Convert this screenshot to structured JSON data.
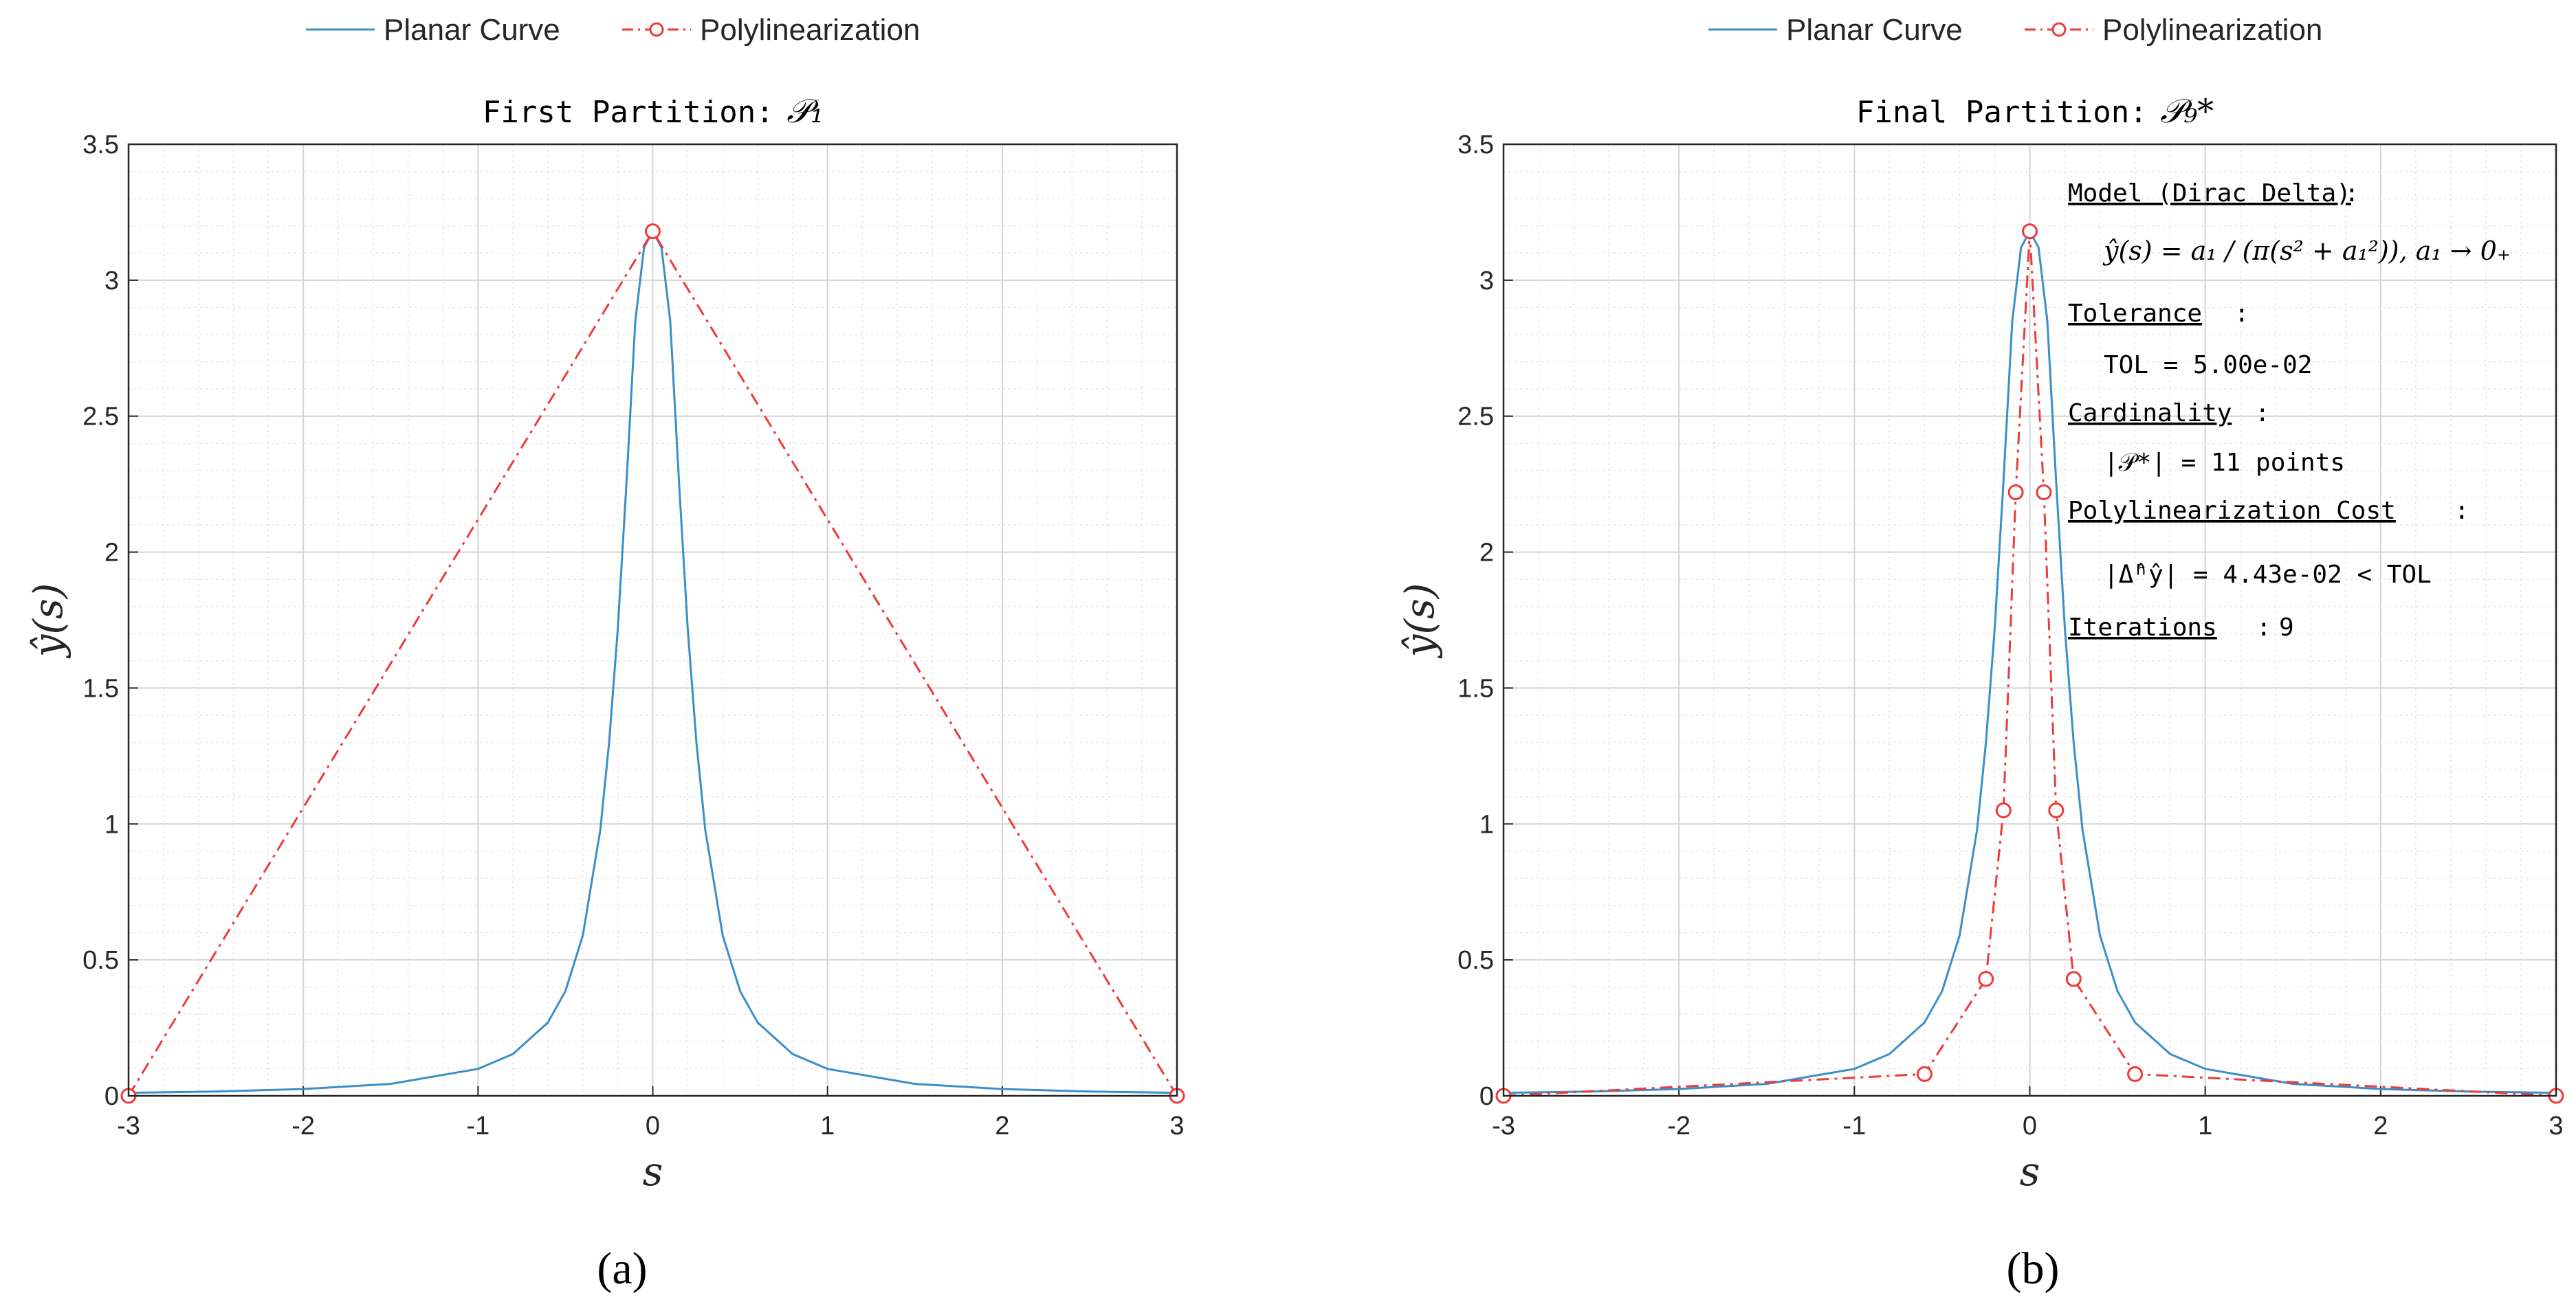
{
  "legend": {
    "curve_label": "Planar Curve",
    "poly_label": "Polylinearization"
  },
  "colors": {
    "curve": "#3a8fc8",
    "poly": "#ee3a3a"
  },
  "chart_data": [
    {
      "panel": "a",
      "caption": "(a)",
      "type": "line",
      "title_text": "First Partition:",
      "title_math": "𝒫₁",
      "xlabel": "s",
      "ylabel": "ŷ(s)",
      "xlim": [
        -3,
        3
      ],
      "ylim": [
        0,
        3.5
      ],
      "xticks": [
        "-3",
        "-2",
        "-1",
        "0",
        "1",
        "2",
        "3"
      ],
      "yticks": [
        "0",
        "0.5",
        "1",
        "1.5",
        "2",
        "2.5",
        "3",
        "3.5"
      ],
      "grid": true,
      "minor_grid": true,
      "legend_position": "top",
      "series": [
        {
          "name": "Planar Curve",
          "style": "solid",
          "x": [
            -3,
            -2.5,
            -2,
            -1.5,
            -1,
            -0.8,
            -0.6,
            -0.5,
            -0.4,
            -0.3,
            -0.25,
            -0.2,
            -0.15,
            -0.1,
            -0.05,
            0,
            0.05,
            0.1,
            0.15,
            0.2,
            0.25,
            0.3,
            0.4,
            0.5,
            0.6,
            0.8,
            1,
            1.5,
            2,
            2.5,
            3
          ],
          "y": [
            0.011,
            0.016,
            0.025,
            0.044,
            0.099,
            0.154,
            0.27,
            0.385,
            0.59,
            0.98,
            1.3,
            1.72,
            2.26,
            2.85,
            3.12,
            3.18,
            3.12,
            2.85,
            2.26,
            1.72,
            1.3,
            0.98,
            0.59,
            0.385,
            0.27,
            0.154,
            0.099,
            0.044,
            0.025,
            0.016,
            0.011
          ]
        },
        {
          "name": "Polylinearization",
          "style": "dash-dot",
          "marker": "circle",
          "x": [
            -3,
            0,
            3
          ],
          "y": [
            0,
            3.18,
            0
          ]
        }
      ]
    },
    {
      "panel": "b",
      "caption": "(b)",
      "type": "line",
      "title_text": "Final Partition:",
      "title_math": "𝒫₉*",
      "xlabel": "s",
      "ylabel": "ŷ(s)",
      "xlim": [
        -3,
        3
      ],
      "ylim": [
        0,
        3.5
      ],
      "xticks": [
        "-3",
        "-2",
        "-1",
        "0",
        "1",
        "2",
        "3"
      ],
      "yticks": [
        "0",
        "0.5",
        "1",
        "1.5",
        "2",
        "2.5",
        "3",
        "3.5"
      ],
      "grid": true,
      "minor_grid": true,
      "legend_position": "top",
      "annotations": {
        "model_label": "Model (Dirac Delta)",
        "model_formula": "ŷ(s) = a₁ / (π(s² + a₁²)),   a₁ → 0₊",
        "tolerance_label": "Tolerance",
        "tolerance_value": "TOL = 5.00e-02",
        "cardinality_label": "Cardinality",
        "cardinality_value": "|𝒫*| = 11 points",
        "cost_label": "Polylinearization Cost",
        "cost_value": "|Δ̂ʰŷ| = 4.43e-02 < TOL",
        "iterations_label": "Iterations",
        "iterations_value": "9"
      },
      "series": [
        {
          "name": "Planar Curve",
          "style": "solid",
          "x": [
            -3,
            -2.5,
            -2,
            -1.5,
            -1,
            -0.8,
            -0.6,
            -0.5,
            -0.4,
            -0.3,
            -0.25,
            -0.2,
            -0.15,
            -0.1,
            -0.05,
            0,
            0.05,
            0.1,
            0.15,
            0.2,
            0.25,
            0.3,
            0.4,
            0.5,
            0.6,
            0.8,
            1,
            1.5,
            2,
            2.5,
            3
          ],
          "y": [
            0.011,
            0.016,
            0.025,
            0.044,
            0.099,
            0.154,
            0.27,
            0.385,
            0.59,
            0.98,
            1.3,
            1.72,
            2.26,
            2.85,
            3.12,
            3.18,
            3.12,
            2.85,
            2.26,
            1.72,
            1.3,
            0.98,
            0.59,
            0.385,
            0.27,
            0.154,
            0.099,
            0.044,
            0.025,
            0.016,
            0.011
          ]
        },
        {
          "name": "Polylinearization",
          "style": "dash-dot",
          "marker": "circle",
          "x": [
            -3,
            -0.6,
            -0.25,
            -0.15,
            -0.08,
            0,
            0.08,
            0.15,
            0.25,
            0.6,
            3
          ],
          "y": [
            0,
            0.08,
            0.43,
            1.05,
            2.22,
            3.18,
            2.22,
            1.05,
            0.43,
            0.08,
            0
          ]
        }
      ]
    }
  ]
}
